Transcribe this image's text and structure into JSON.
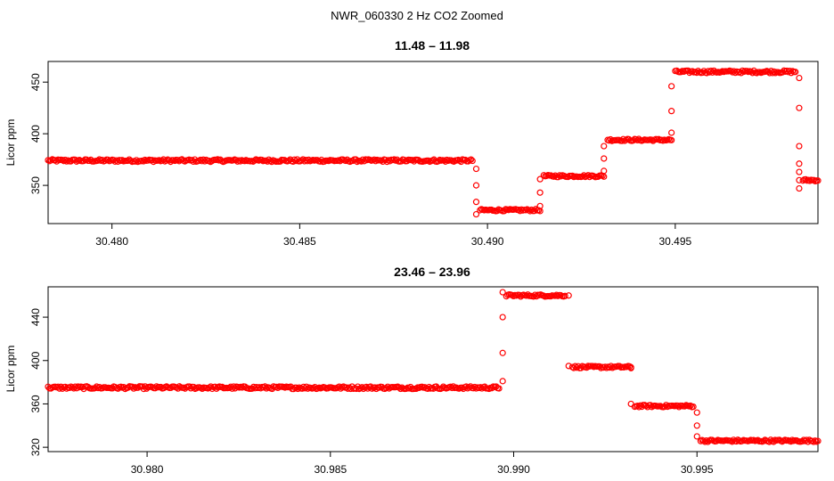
{
  "figure_title": "NWR_060330  2 Hz CO2 Zoomed",
  "chart_data": [
    {
      "type": "scatter",
      "title": "11.48 – 11.98",
      "xlabel": "",
      "ylabel": "Licor ppm",
      "xlim": [
        30.4783,
        30.4988
      ],
      "ylim": [
        313,
        470
      ],
      "xticks": [
        "30.480",
        "30.485",
        "30.490",
        "30.495"
      ],
      "xtick_values": [
        30.48,
        30.485,
        30.49,
        30.495
      ],
      "yticks": [
        "350",
        "400",
        "450"
      ],
      "ytick_values": [
        350,
        400,
        450
      ],
      "grid": false,
      "marker_color": "#ff0000",
      "series": [
        {
          "segments": [
            {
              "x0": 30.4783,
              "x1": 30.4896,
              "y": 374,
              "jitter": 1.2
            },
            {
              "x0": 30.4898,
              "x1": 30.4914,
              "y": 326,
              "jitter": 1.0
            },
            {
              "x0": 30.4915,
              "x1": 30.4931,
              "y": 359,
              "jitter": 1.0
            },
            {
              "x0": 30.4932,
              "x1": 30.4949,
              "y": 394,
              "jitter": 1.0
            },
            {
              "x0": 30.495,
              "x1": 30.4982,
              "y": 460,
              "jitter": 1.2
            },
            {
              "x0": 30.4984,
              "x1": 30.4988,
              "y": 355,
              "jitter": 1.0
            }
          ],
          "transitions": [
            {
              "x": 30.4897,
              "y": [
                366,
                350,
                334,
                322
              ]
            },
            {
              "x": 30.4914,
              "y": [
                330,
                343,
                356
              ]
            },
            {
              "x": 30.4931,
              "y": [
                364,
                376,
                388
              ]
            },
            {
              "x": 30.4949,
              "y": [
                401,
                422,
                446
              ]
            },
            {
              "x": 30.4983,
              "y": [
                454,
                425,
                388,
                371,
                363,
                355,
                347
              ]
            }
          ]
        }
      ]
    },
    {
      "type": "scatter",
      "title": "23.46 – 23.96",
      "xlabel": "",
      "ylabel": "Licor ppm",
      "xlim": [
        30.9773,
        30.9983
      ],
      "ylim": [
        316,
        468
      ],
      "xticks": [
        "30.980",
        "30.985",
        "30.990",
        "30.995"
      ],
      "xtick_values": [
        30.98,
        30.985,
        30.99,
        30.995
      ],
      "yticks": [
        "320",
        "360",
        "400",
        "440"
      ],
      "ytick_values": [
        320,
        360,
        400,
        440
      ],
      "grid": false,
      "marker_color": "#ff0000",
      "series": [
        {
          "segments": [
            {
              "x0": 30.9773,
              "x1": 30.9896,
              "y": 375,
              "jitter": 1.2
            },
            {
              "x0": 30.9898,
              "x1": 30.9914,
              "y": 460,
              "jitter": 1.0
            },
            {
              "x0": 30.9916,
              "x1": 30.9932,
              "y": 394,
              "jitter": 1.0
            },
            {
              "x0": 30.9933,
              "x1": 30.9949,
              "y": 358,
              "jitter": 1.0
            },
            {
              "x0": 30.9951,
              "x1": 30.9983,
              "y": 326,
              "jitter": 1.0
            }
          ],
          "transitions": [
            {
              "x": 30.9897,
              "y": [
                381,
                407,
                440,
                463
              ]
            },
            {
              "x": 30.9915,
              "y": [
                460,
                395
              ]
            },
            {
              "x": 30.9932,
              "y": [
                393,
                360
              ]
            },
            {
              "x": 30.995,
              "y": [
                352,
                340,
                330
              ]
            }
          ]
        }
      ]
    }
  ]
}
